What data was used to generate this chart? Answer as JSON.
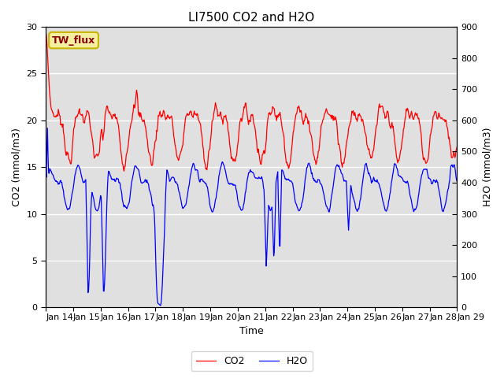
{
  "title": "LI7500 CO2 and H2O",
  "xlabel": "Time",
  "ylabel_left": "CO2 (mmol/m3)",
  "ylabel_right": "H2O (mmol/m3)",
  "ylim_left": [
    0,
    30
  ],
  "ylim_right": [
    0,
    900
  ],
  "yticks_left": [
    0,
    5,
    10,
    15,
    20,
    25,
    30
  ],
  "yticks_right": [
    0,
    100,
    200,
    300,
    400,
    500,
    600,
    700,
    800,
    900
  ],
  "bg_color": "#e0e0e0",
  "co2_color": "red",
  "h2o_color": "blue",
  "annotation_text": "TW_flux",
  "annotation_bg": "#f5f0a0",
  "annotation_border": "#c8b400",
  "legend_labels": [
    "CO2",
    "H2O"
  ],
  "title_fontsize": 11,
  "axis_label_fontsize": 9,
  "tick_fontsize": 8
}
